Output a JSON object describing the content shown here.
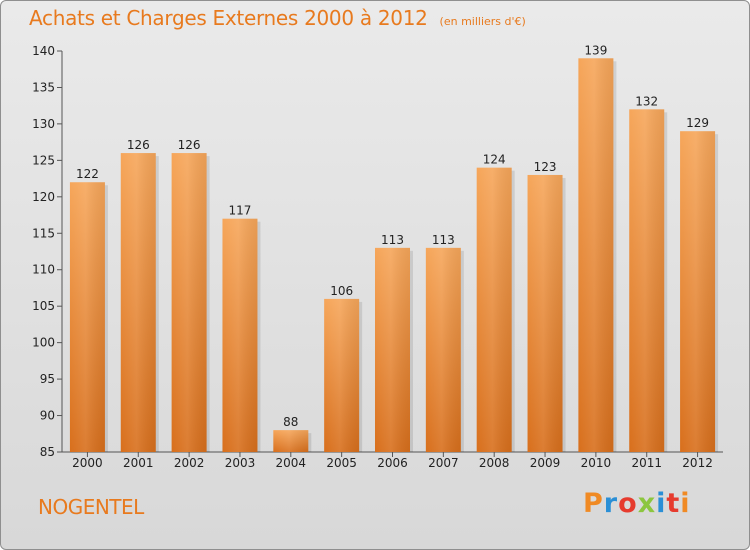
{
  "header": {
    "title": "Achats et Charges Externes 2000 à 2012",
    "unit": "(en milliers d'€)"
  },
  "footer": {
    "commune": "NOGENTEL",
    "logo_text": "Proxiti",
    "logo_colors": [
      "#f08a24",
      "#2a8fd6",
      "#e63b2e",
      "#8cc63f",
      "#2a8fd6",
      "#e63b2e",
      "#f08a24"
    ]
  },
  "chart_data": {
    "type": "bar",
    "title": "Achats et Charges Externes 2000 à 2012",
    "subtitle": "(en milliers d'€)",
    "categories": [
      "2000",
      "2001",
      "2002",
      "2003",
      "2004",
      "2005",
      "2006",
      "2007",
      "2008",
      "2009",
      "2010",
      "2011",
      "2012"
    ],
    "values": [
      122,
      126,
      126,
      117,
      88,
      106,
      113,
      113,
      124,
      123,
      139,
      132,
      129
    ],
    "ylim": [
      85,
      140
    ],
    "yticks": [
      85,
      90,
      95,
      100,
      105,
      110,
      115,
      120,
      125,
      130,
      135,
      140
    ],
    "xlabel": "",
    "ylabel": "",
    "grid": false,
    "bar_color": "#f0903a",
    "bar_color_top": "#f6a65a",
    "bar_color_bottom": "#d86f1c"
  }
}
